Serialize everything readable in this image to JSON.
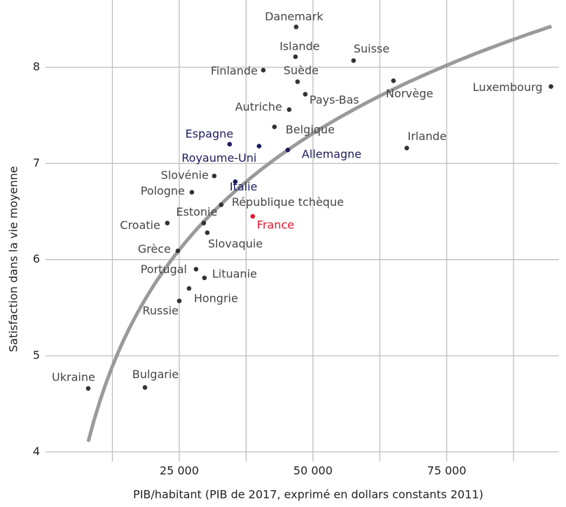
{
  "chart_data": {
    "type": "scatter",
    "x_label": "PIB/habitant (PIB de 2017, exprimé en dollars constants 2011)",
    "y_label": "Satisfaction dans la vie moyenne",
    "labels": [
      "Danemark",
      "Islande",
      "Suisse",
      "Finlande",
      "Suède",
      "Norvège",
      "Luxembourg",
      "Pays-Bas",
      "Autriche",
      "Belgique",
      "Irlande",
      "Espagne",
      "Royaume-Uni",
      "Allemagne",
      "Slovénie",
      "Italie",
      "Pologne",
      "République tchèque",
      "Estonie",
      "France",
      "Croatie",
      "Slovaquie",
      "Grèce",
      "Portugal",
      "Lituanie",
      "Hongrie",
      "Russie",
      "Ukraine",
      "Bulgarie"
    ],
    "x": [
      46860,
      46730,
      57590,
      40710,
      47120,
      65050,
      94500,
      48560,
      45550,
      42800,
      67540,
      34420,
      39920,
      45290,
      31540,
      35470,
      27360,
      32850,
      29580,
      38740,
      22770,
      30240,
      24740,
      28140,
      29710,
      26830,
      25000,
      7980,
      18590
    ],
    "values": [
      8.42,
      8.11,
      8.07,
      7.97,
      7.85,
      7.86,
      7.8,
      7.72,
      7.56,
      7.38,
      7.16,
      7.2,
      7.18,
      7.14,
      6.87,
      6.81,
      6.7,
      6.57,
      6.38,
      6.45,
      6.38,
      6.28,
      6.09,
      5.9,
      5.81,
      5.7,
      5.57,
      4.66,
      4.67
    ],
    "colors": [
      "#444444",
      "#444444",
      "#444444",
      "#444444",
      "#444444",
      "#444444",
      "#444444",
      "#444444",
      "#444444",
      "#444444",
      "#444444",
      "#1c1c5e",
      "#1c1c5e",
      "#1c1c5e",
      "#444444",
      "#1c1c5e",
      "#444444",
      "#444444",
      "#444444",
      "#e3142c",
      "#444444",
      "#444444",
      "#444444",
      "#444444",
      "#444444",
      "#444444",
      "#444444",
      "#444444",
      "#444444"
    ],
    "trend": {
      "type": "log",
      "a": -11.59,
      "b": 1.747,
      "xrange": [
        7980,
        94600
      ],
      "color": "#9a9a9a"
    },
    "xlim": [
      0,
      96000
    ],
    "ylim": [
      3.9,
      8.7
    ],
    "xticks": [
      {
        "value": 25000,
        "label": "25 000"
      },
      {
        "value": 50000,
        "label": "50 000"
      },
      {
        "value": 75000,
        "label": "75 000"
      }
    ],
    "xgrid": [
      12500,
      37500,
      62500,
      87500
    ],
    "yticks": [
      4,
      5,
      6,
      7,
      8
    ],
    "grid": true
  }
}
